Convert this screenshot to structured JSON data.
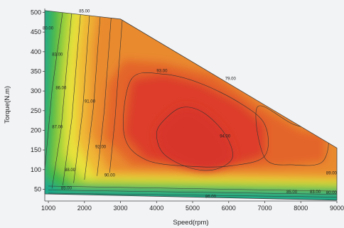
{
  "chart_data": {
    "type": "heatmap",
    "title": "",
    "xlabel": "Speed(rpm)",
    "ylabel": "Torque(N.m)",
    "xlim": [
      900,
      9000
    ],
    "ylim": [
      20,
      510
    ],
    "x_ticks": [
      "1000",
      "2000",
      "3000",
      "4000",
      "5000",
      "6000",
      "7000",
      "8000",
      "9000"
    ],
    "x_tick_values": [
      1000,
      2000,
      3000,
      4000,
      5000,
      6000,
      7000,
      8000,
      9000
    ],
    "y_ticks": [
      "50",
      "100",
      "150",
      "200",
      "250",
      "300",
      "350",
      "400",
      "450",
      "500"
    ],
    "y_tick_values": [
      50,
      100,
      150,
      200,
      250,
      300,
      350,
      400,
      450,
      500
    ],
    "color_scale": [
      "#1fa88a",
      "#3fb84a",
      "#9cd13a",
      "#e8e23a",
      "#f0b534",
      "#e98a2e",
      "#e4652c",
      "#dd3e2c"
    ],
    "envelope": [
      [
        900,
        505
      ],
      [
        3000,
        483
      ],
      [
        9000,
        155
      ],
      [
        9000,
        22
      ],
      [
        900,
        38
      ]
    ],
    "peak_region": {
      "label": "94.00",
      "points": [
        [
          4200,
          225
        ],
        [
          4700,
          258
        ],
        [
          5300,
          245
        ],
        [
          5900,
          190
        ],
        [
          6100,
          130
        ],
        [
          5600,
          100
        ],
        [
          4900,
          105
        ],
        [
          4200,
          140
        ],
        [
          4000,
          190
        ]
      ]
    },
    "contour_labels": [
      {
        "text": "85.00",
        "x": 2000,
        "y": 500
      },
      {
        "text": "80.00",
        "x": 990,
        "y": 457
      },
      {
        "text": "83.00",
        "x": 1250,
        "y": 390
      },
      {
        "text": "86.00",
        "x": 1350,
        "y": 305
      },
      {
        "text": "91.00",
        "x": 2150,
        "y": 270
      },
      {
        "text": "87.00",
        "x": 1250,
        "y": 205
      },
      {
        "text": "92.00",
        "x": 2450,
        "y": 155
      },
      {
        "text": "88.00",
        "x": 1600,
        "y": 96
      },
      {
        "text": "90.00",
        "x": 2700,
        "y": 82
      },
      {
        "text": "85.00",
        "x": 1500,
        "y": 50
      },
      {
        "text": "93.00",
        "x": 4150,
        "y": 348
      },
      {
        "text": "79.00",
        "x": 6050,
        "y": 328
      },
      {
        "text": "94.00",
        "x": 5900,
        "y": 182
      },
      {
        "text": "89.00",
        "x": 8850,
        "y": 88
      },
      {
        "text": "86.00",
        "x": 5500,
        "y": 28
      },
      {
        "text": "85.00",
        "x": 7750,
        "y": 40
      },
      {
        "text": "83.00",
        "x": 8400,
        "y": 40
      },
      {
        "text": "80.00",
        "x": 8850,
        "y": 38
      }
    ]
  }
}
